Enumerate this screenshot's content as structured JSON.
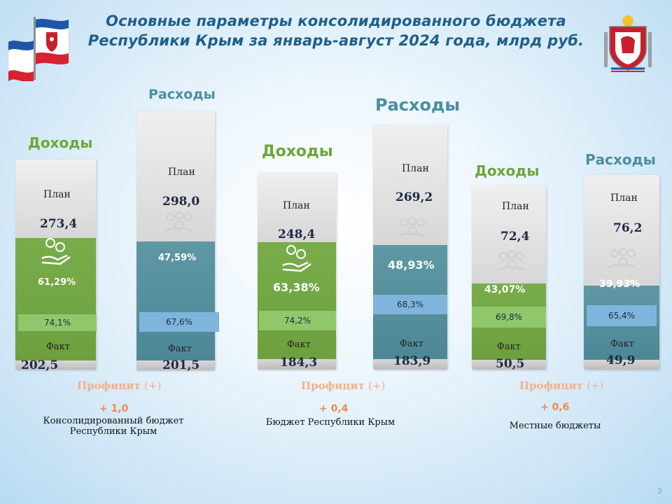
{
  "title_line1": "Основные параметры консолидированного бюджета",
  "title_line2": "Республики Крым за январь-август 2024 года, млрд руб.",
  "labels": {
    "income": "Доходы",
    "expense": "Расходы",
    "plan": "План",
    "fact": "Факт"
  },
  "surplus": {
    "word": "Профицит",
    "sign": "(+)"
  },
  "groups": [
    {
      "caption_line1": "Консолидированный бюджет",
      "caption_line2": "Республики Крым",
      "surplus_value": "+ 1,0",
      "income": {
        "plan": "273,4",
        "fact": "202,5",
        "share_pct": "61,29%",
        "exec_pct": "74,1%"
      },
      "expense": {
        "plan": "298,0",
        "fact": "201,5",
        "share_pct": "47,59%",
        "exec_pct": "67,6%"
      }
    },
    {
      "caption_line1": "Бюджет Республики Крым",
      "caption_line2": "",
      "surplus_value": "+ 0,4",
      "income": {
        "plan": "248,4",
        "fact": "184,3",
        "share_pct": "63,38%",
        "exec_pct": "74,2%"
      },
      "expense": {
        "plan": "269,2",
        "fact": "183,9",
        "share_pct": "48,93%",
        "exec_pct": "68,3%"
      }
    },
    {
      "caption_line1": "Местные бюджеты",
      "caption_line2": "",
      "surplus_value": "+ 0,6",
      "income": {
        "plan": "72,4",
        "fact": "50,5",
        "share_pct": "43,07%",
        "exec_pct": "69,8%"
      },
      "expense": {
        "plan": "76,2",
        "fact": "49,9",
        "share_pct": "39,93%",
        "exec_pct": "65,4%"
      }
    }
  ],
  "page_number": "2",
  "icons": {
    "flag": "crimea-flag-icon",
    "coat": "crimea-coat-of-arms-icon",
    "hand": "hand-coins-icon"
  },
  "colors": {
    "title": "#1f5f8b",
    "income": "#6aa83a",
    "expense": "#4b8ea3",
    "surplus": "#f08a4b"
  }
}
